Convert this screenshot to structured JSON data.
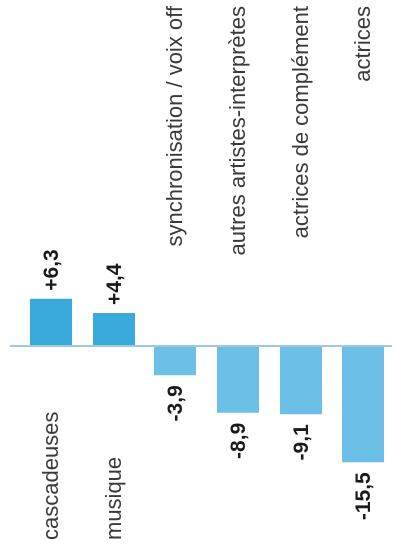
{
  "chart_data": {
    "type": "bar",
    "categories": [
      "cascadeuses",
      "musique",
      "synchronisation / voix off",
      "autres artistes-interprètes",
      "actrices de complément",
      "actrices"
    ],
    "values": [
      6.3,
      4.4,
      -3.9,
      -8.9,
      -9.1,
      -15.5
    ],
    "value_labels": [
      "+6,3",
      "+4,4",
      "-3,9",
      "-8,9",
      "-9,1",
      "-15,5"
    ],
    "title": "",
    "xlabel": "",
    "ylabel": "",
    "ylim": [
      -16,
      8
    ],
    "grid": false,
    "legend": "none",
    "orientation": "rotated",
    "colors": {
      "bar_primary": "#3aa9dc",
      "bar_secondary": "#6cbfe6",
      "baseline": "#9ec9e4",
      "label_text": "#3a3a3a",
      "value_text": "#1a1a1a"
    }
  }
}
